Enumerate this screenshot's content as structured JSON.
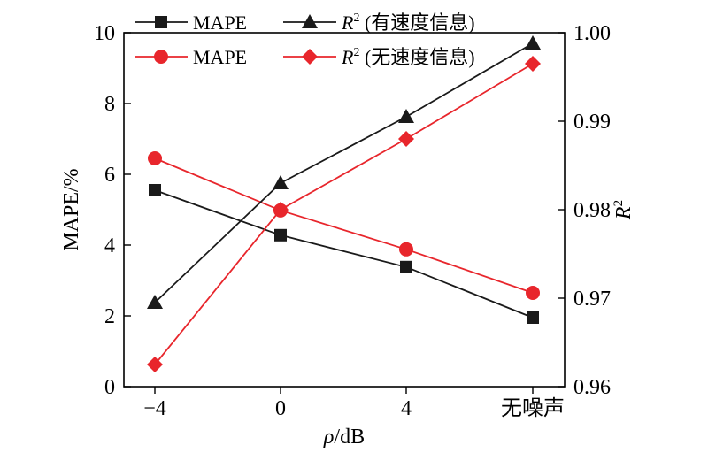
{
  "chart_data": {
    "type": "line",
    "categories": [
      "−4",
      "0",
      "4",
      "无噪声"
    ],
    "xlabel_italic": "ρ",
    "xlabel_rest": "/dB",
    "ylabel_left": "MAPE/%",
    "ylabel_right_italic": "R",
    "ylabel_right_sup": "2",
    "ylim_left": [
      0,
      10
    ],
    "yticks_left": [
      "0",
      "2",
      "4",
      "6",
      "8",
      "10"
    ],
    "ylim_right": [
      0.96,
      1.0
    ],
    "yticks_right": [
      "0.96",
      "0.97",
      "0.98",
      "0.99",
      "1.00"
    ],
    "legend_position": "top",
    "series": [
      {
        "name": "MAPE",
        "axis": "left",
        "marker": "square",
        "color": "#1a1a1a",
        "values": [
          5.55,
          4.28,
          3.38,
          1.95
        ]
      },
      {
        "name": "MAPE",
        "axis": "left",
        "marker": "circle",
        "color": "#e8262c",
        "values": [
          6.45,
          4.98,
          3.88,
          2.65
        ]
      },
      {
        "name_italic": "R",
        "name_sup": "2",
        "name_rest": " (有速度信息)",
        "axis": "right",
        "marker": "triangle",
        "color": "#1a1a1a",
        "values": [
          0.9695,
          0.983,
          0.9905,
          0.9988
        ]
      },
      {
        "name_italic": "R",
        "name_sup": "2",
        "name_rest": " (无速度信息)",
        "axis": "right",
        "marker": "diamond",
        "color": "#e8262c",
        "values": [
          0.9625,
          0.98,
          0.988,
          0.9965
        ]
      }
    ]
  }
}
